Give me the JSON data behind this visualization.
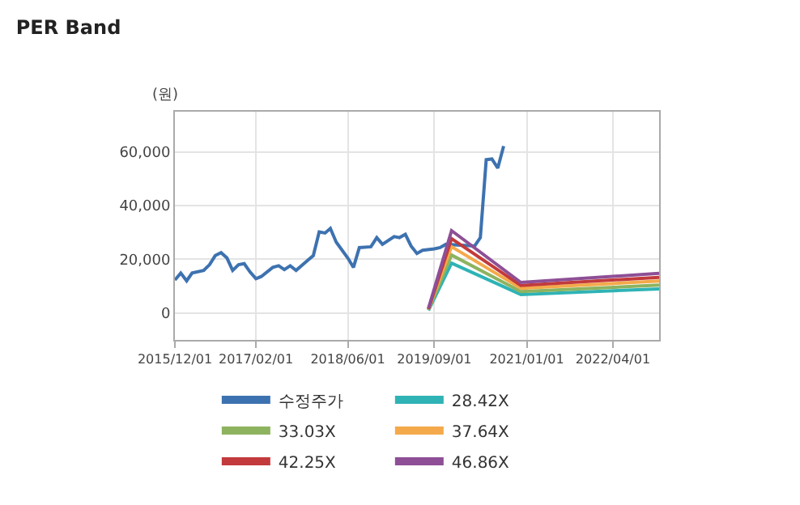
{
  "chart_data": {
    "type": "line",
    "title": "PER Band",
    "ylabel": "(원)",
    "xlim": [
      "2015-12-01",
      "2022-12-01"
    ],
    "xticks": [
      {
        "value": "2015-12-01",
        "label": "2015/12/01"
      },
      {
        "value": "2017-02-01",
        "label": "2017/02/01"
      },
      {
        "value": "2018-06-01",
        "label": "2018/06/01"
      },
      {
        "value": "2019-09-01",
        "label": "2019/09/01"
      },
      {
        "value": "2021-01-01",
        "label": "2021/01/01"
      },
      {
        "value": "2022-04-01",
        "label": "2022/04/01"
      }
    ],
    "ylim": [
      -10000,
      75000
    ],
    "yticks": [
      0,
      {
        "value": 20000,
        "label": "20,000"
      },
      {
        "value": 40000,
        "label": "40,000"
      },
      {
        "value": 60000,
        "label": "60,000"
      }
    ],
    "grid": true,
    "legend": "bottom",
    "marker": "none",
    "line_style": "solid",
    "series": [
      {
        "name": "수정주가",
        "color": "#3d72b0",
        "x": [
          "2015-12-01",
          "2016-01-01",
          "2016-02-01",
          "2016-03-01",
          "2016-05-01",
          "2016-06-01",
          "2016-07-01",
          "2016-08-01",
          "2016-09-01",
          "2016-10-01",
          "2016-11-01",
          "2016-12-01",
          "2017-01-01",
          "2017-02-01",
          "2017-03-01",
          "2017-05-01",
          "2017-06-01",
          "2017-07-01",
          "2017-08-01",
          "2017-09-01",
          "2017-11-01",
          "2017-12-01",
          "2018-01-01",
          "2018-02-01",
          "2018-03-01",
          "2018-04-01",
          "2018-06-01",
          "2018-07-01",
          "2018-08-01",
          "2018-10-01",
          "2018-11-01",
          "2018-12-01",
          "2019-02-01",
          "2019-03-01",
          "2019-04-01",
          "2019-05-01",
          "2019-06-01",
          "2019-07-01",
          "2019-09-01",
          "2019-10-01",
          "2019-11-01",
          "2020-04-01",
          "2020-05-01",
          "2020-06-01",
          "2020-07-01",
          "2020-08-01",
          "2020-09-01"
        ],
        "values": [
          12300,
          14900,
          12000,
          14900,
          15900,
          18000,
          21400,
          22500,
          20500,
          15900,
          18000,
          18400,
          15300,
          12800,
          13600,
          17000,
          17600,
          16200,
          17600,
          15900,
          19600,
          21400,
          30200,
          29800,
          31500,
          26400,
          20500,
          17000,
          24400,
          24700,
          28100,
          25600,
          28500,
          28100,
          29300,
          25000,
          22200,
          23400,
          23900,
          24400,
          25600,
          25000,
          28100,
          57100,
          57400,
          54000,
          62200
        ]
      },
      {
        "name": "28.42X",
        "color": "#2fb3b5",
        "x": [
          "2019-08-01",
          "2019-12-01",
          "2020-12-01",
          "2022-12-01"
        ],
        "values": [
          1000,
          18600,
          6900,
          9000
        ]
      },
      {
        "name": "33.03X",
        "color": "#8db35f",
        "x": [
          "2019-08-01",
          "2019-12-01",
          "2020-12-01",
          "2022-12-01"
        ],
        "values": [
          1200,
          21600,
          8000,
          10400
        ]
      },
      {
        "name": "37.64X",
        "color": "#f4a94a",
        "x": [
          "2019-08-01",
          "2019-12-01",
          "2020-12-01",
          "2022-12-01"
        ],
        "values": [
          1400,
          24700,
          9200,
          11900
        ]
      },
      {
        "name": "42.25X",
        "color": "#c23a3c",
        "x": [
          "2019-08-01",
          "2019-12-01",
          "2020-12-01",
          "2022-12-01"
        ],
        "values": [
          1500,
          27700,
          10300,
          13300
        ]
      },
      {
        "name": "46.86X",
        "color": "#8e4f96",
        "x": [
          "2019-08-01",
          "2019-12-01",
          "2020-12-01",
          "2022-12-01"
        ],
        "values": [
          1700,
          30700,
          11400,
          14800
        ]
      }
    ]
  }
}
